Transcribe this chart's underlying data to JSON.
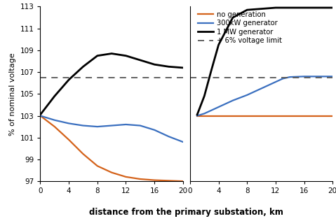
{
  "title": "",
  "xlabel": "distance from the primary substation, km",
  "ylabel": "% of nominal voltage",
  "ylim": [
    97,
    113
  ],
  "yticks": [
    97,
    99,
    101,
    103,
    105,
    107,
    109,
    111,
    113
  ],
  "xticks": [
    0,
    4,
    8,
    12,
    16,
    20
  ],
  "voltage_limit": 106.5,
  "legend_labels": [
    "no generation",
    "300kW generator",
    "1 MW generator",
    "+ 6% voltage limit"
  ],
  "colors": {
    "no_gen": "#d4621a",
    "gen300": "#3a6fbf",
    "gen1MW": "#000000",
    "limit": "#555555"
  },
  "left_x": [
    0,
    2,
    4,
    6,
    8,
    10,
    12,
    14,
    16,
    18,
    20
  ],
  "left_no_gen": [
    103.0,
    102.0,
    100.8,
    99.5,
    98.4,
    97.8,
    97.4,
    97.2,
    97.1,
    97.05,
    97.0
  ],
  "left_gen300": [
    103.0,
    102.6,
    102.3,
    102.1,
    102.0,
    102.1,
    102.2,
    102.1,
    101.7,
    101.1,
    100.6
  ],
  "left_gen1MW": [
    103.1,
    104.8,
    106.3,
    107.5,
    108.5,
    108.7,
    108.5,
    108.1,
    107.7,
    107.5,
    107.4
  ],
  "right_x": [
    1,
    2,
    3,
    4,
    6,
    8,
    10,
    12,
    13,
    14,
    16,
    18,
    20
  ],
  "right_no_gen": [
    103.0,
    103.0,
    103.0,
    103.0,
    103.0,
    103.0,
    103.0,
    103.0,
    103.0,
    103.0,
    103.0,
    103.0,
    103.0
  ],
  "right_gen300": [
    103.0,
    103.2,
    103.5,
    103.8,
    104.4,
    104.9,
    105.5,
    106.1,
    106.4,
    106.55,
    106.6,
    106.6,
    106.6
  ],
  "right_gen1MW": [
    103.1,
    104.8,
    107.2,
    109.5,
    112.0,
    112.7,
    112.8,
    112.9,
    112.9,
    112.9,
    112.9,
    112.9,
    112.9
  ]
}
